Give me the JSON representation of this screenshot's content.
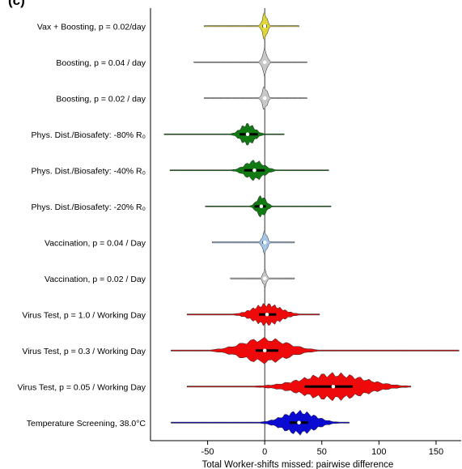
{
  "panel_title": "(c)",
  "chart_data": {
    "type": "violin",
    "title": "",
    "xlabel": "Total Worker-shifts missed: pairwise difference",
    "ylabel": "",
    "xlim": [
      -100,
      172
    ],
    "xticks": [
      -50,
      0,
      50,
      100,
      150
    ],
    "xtick_labels": [
      "-50",
      "0",
      "50",
      "100",
      "150"
    ],
    "reference_line_x": 0,
    "grid": false,
    "legend": "none",
    "categories": [
      {
        "label": "Vax + Boosting, p = 0.02/day",
        "color": "#e0d63a",
        "median": 0,
        "q1": -2,
        "q3": 2,
        "min": -53,
        "max": 30,
        "spread": 2,
        "height": 0.85
      },
      {
        "label": "Boosting, p = 0.04 / day",
        "color": "#c8c8c8",
        "median": 0,
        "q1": -1,
        "q3": 1,
        "min": -62,
        "max": 37,
        "spread": 2,
        "height": 0.8
      },
      {
        "label": "Boosting, p = 0.02 / day",
        "color": "#c8c8c8",
        "median": 0,
        "q1": -1,
        "q3": 1,
        "min": -53,
        "max": 37,
        "spread": 2,
        "height": 0.75
      },
      {
        "label": "Phys. Dist./Biosafety: -80% R₀",
        "color": "#127a12",
        "median": -15,
        "q1": -22,
        "q3": -6,
        "min": -88,
        "max": 17,
        "spread": 6,
        "height": 0.65
      },
      {
        "label": "Phys. Dist./Biosafety: -40% R₀",
        "color": "#127a12",
        "median": -9,
        "q1": -18,
        "q3": 0,
        "min": -83,
        "max": 56,
        "spread": 8,
        "height": 0.6
      },
      {
        "label": "Phys. Dist./Biosafety: -20% R₀",
        "color": "#127a12",
        "median": -3,
        "q1": -9,
        "q3": 1,
        "min": -52,
        "max": 58,
        "spread": 4,
        "height": 0.65
      },
      {
        "label": "Vaccination, p = 0.04 / Day",
        "color": "#a6c8e8",
        "median": 0,
        "q1": -2,
        "q3": 1,
        "min": -46,
        "max": 26,
        "spread": 2,
        "height": 0.7
      },
      {
        "label": "Vaccination, p = 0.02 / Day",
        "color": "#c8c8c8",
        "median": 0,
        "q1": -1,
        "q3": 1,
        "min": -30,
        "max": 26,
        "spread": 1.5,
        "height": 0.55
      },
      {
        "label": "Virus Test, p = 1.0 / Working Day",
        "color": "#ee0a0a",
        "median": 2,
        "q1": -5,
        "q3": 10,
        "min": -68,
        "max": 48,
        "spread": 12,
        "height": 0.65
      },
      {
        "label": "Virus Test, p = 0.3 / Working Day",
        "color": "#ee0a0a",
        "median": 0,
        "q1": -8,
        "q3": 12,
        "min": -82,
        "max": 170,
        "spread": 20,
        "height": 0.75
      },
      {
        "label": "Virus Test, p = 0.05 / Working Day",
        "color": "#ee0a0a",
        "median": 60,
        "q1": 35,
        "q3": 77,
        "min": -68,
        "max": 128,
        "spread": 27,
        "height": 0.8
      },
      {
        "label": "Temperature Screening, 38.0°C",
        "color": "#0a0ad0",
        "median": 30,
        "q1": 22,
        "q3": 38,
        "min": -82,
        "max": 74,
        "spread": 14,
        "height": 0.7
      }
    ]
  }
}
